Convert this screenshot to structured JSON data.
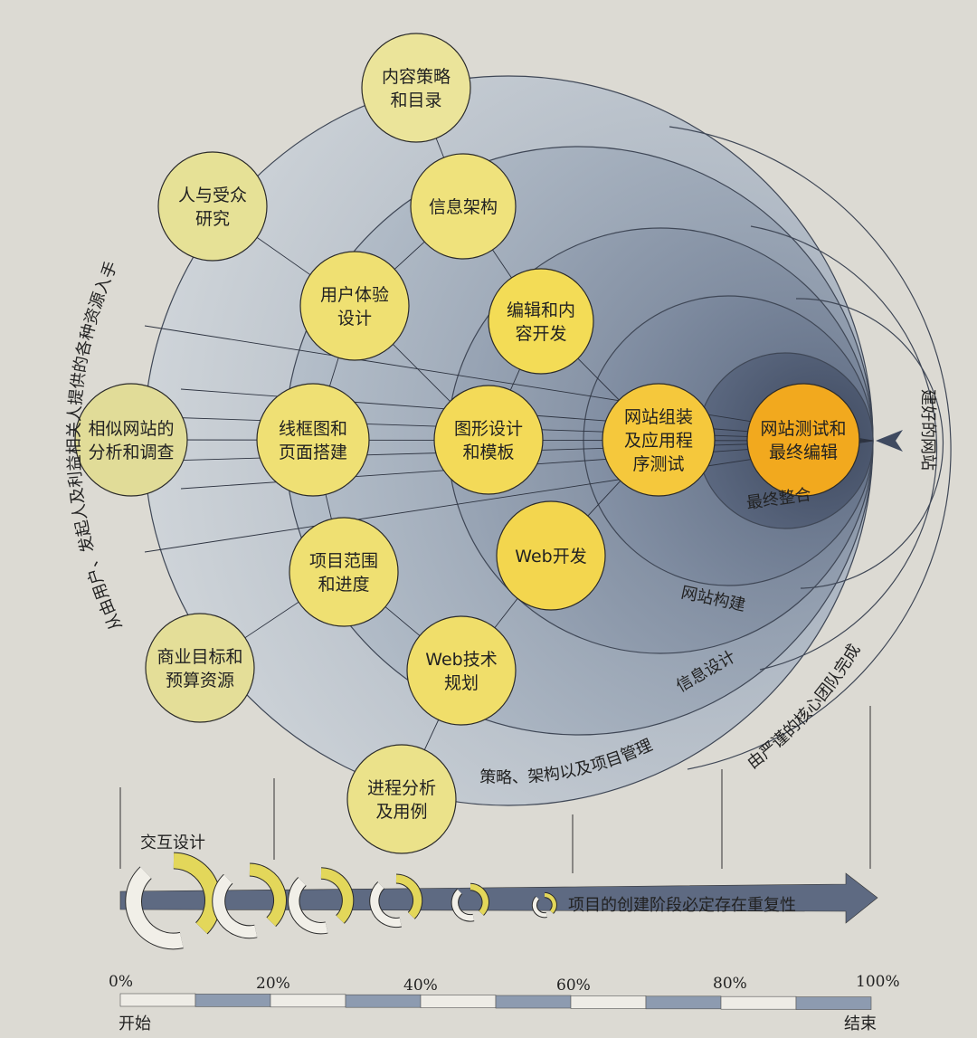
{
  "nodes": [
    {
      "id": "content-strategy",
      "lines": [
        "内容策略",
        "和目录"
      ],
      "color": "#ebe49a"
    },
    {
      "id": "audience-research",
      "lines": [
        "人与受众",
        "研究"
      ],
      "color": "#e6e196"
    },
    {
      "id": "information-architecture",
      "lines": [
        "信息架构"
      ],
      "color": "#efe27c"
    },
    {
      "id": "ux-design",
      "lines": [
        "用户体验",
        "设计"
      ],
      "color": "#efe072"
    },
    {
      "id": "editorial-content",
      "lines": [
        "编辑和内",
        "容开发"
      ],
      "color": "#f3dc56"
    },
    {
      "id": "competitor-analysis",
      "lines": [
        "相似网站的",
        "分析和调查"
      ],
      "color": "#e1dc98"
    },
    {
      "id": "wireframes",
      "lines": [
        "线框图和",
        "页面搭建"
      ],
      "color": "#efe074"
    },
    {
      "id": "graphic-design",
      "lines": [
        "图形设计",
        "和模板"
      ],
      "color": "#f3da58"
    },
    {
      "id": "site-assembly",
      "lines": [
        "网站组装",
        "及应用程",
        "序测试"
      ],
      "color": "#f5c83c"
    },
    {
      "id": "final-testing",
      "lines": [
        "网站测试和",
        "最终编辑"
      ],
      "color": "#f2a91e"
    },
    {
      "id": "web-development",
      "lines": [
        "Web开发"
      ],
      "color": "#f3d64e"
    },
    {
      "id": "project-scope",
      "lines": [
        "项目范围",
        "和进度"
      ],
      "color": "#efe072"
    },
    {
      "id": "business-goals",
      "lines": [
        "商业目标和",
        "预算资源"
      ],
      "color": "#e4de98"
    },
    {
      "id": "web-tech-planning",
      "lines": [
        "Web技术",
        "规划"
      ],
      "color": "#f0de6a"
    },
    {
      "id": "process-analysis",
      "lines": [
        "进程分析",
        "及用例"
      ],
      "color": "#ebe28a"
    }
  ],
  "layers": {
    "strategy": "策略、架构以及项目管理",
    "information_design": "信息设计",
    "site_construction": "网站构建",
    "final_integration": "最终整合"
  },
  "annotations": {
    "left_arc": "从由用户、发起人及利益相关人提供的各种资源入手",
    "right_arc": "由严谨的核心团队完成",
    "output": "建好的网站",
    "interaction_design": "交互设计",
    "iteration_note": "项目的创建阶段必定存在重复性"
  },
  "timeline": {
    "ticks": [
      "0%",
      "20%",
      "40%",
      "60%",
      "80%",
      "100%"
    ],
    "start": "开始",
    "end": "结束"
  },
  "colors": {
    "node_yellow": "#efe072",
    "node_orange": "#f2a91e",
    "layer_dark": "#56627a",
    "arrow": "#56627a"
  }
}
